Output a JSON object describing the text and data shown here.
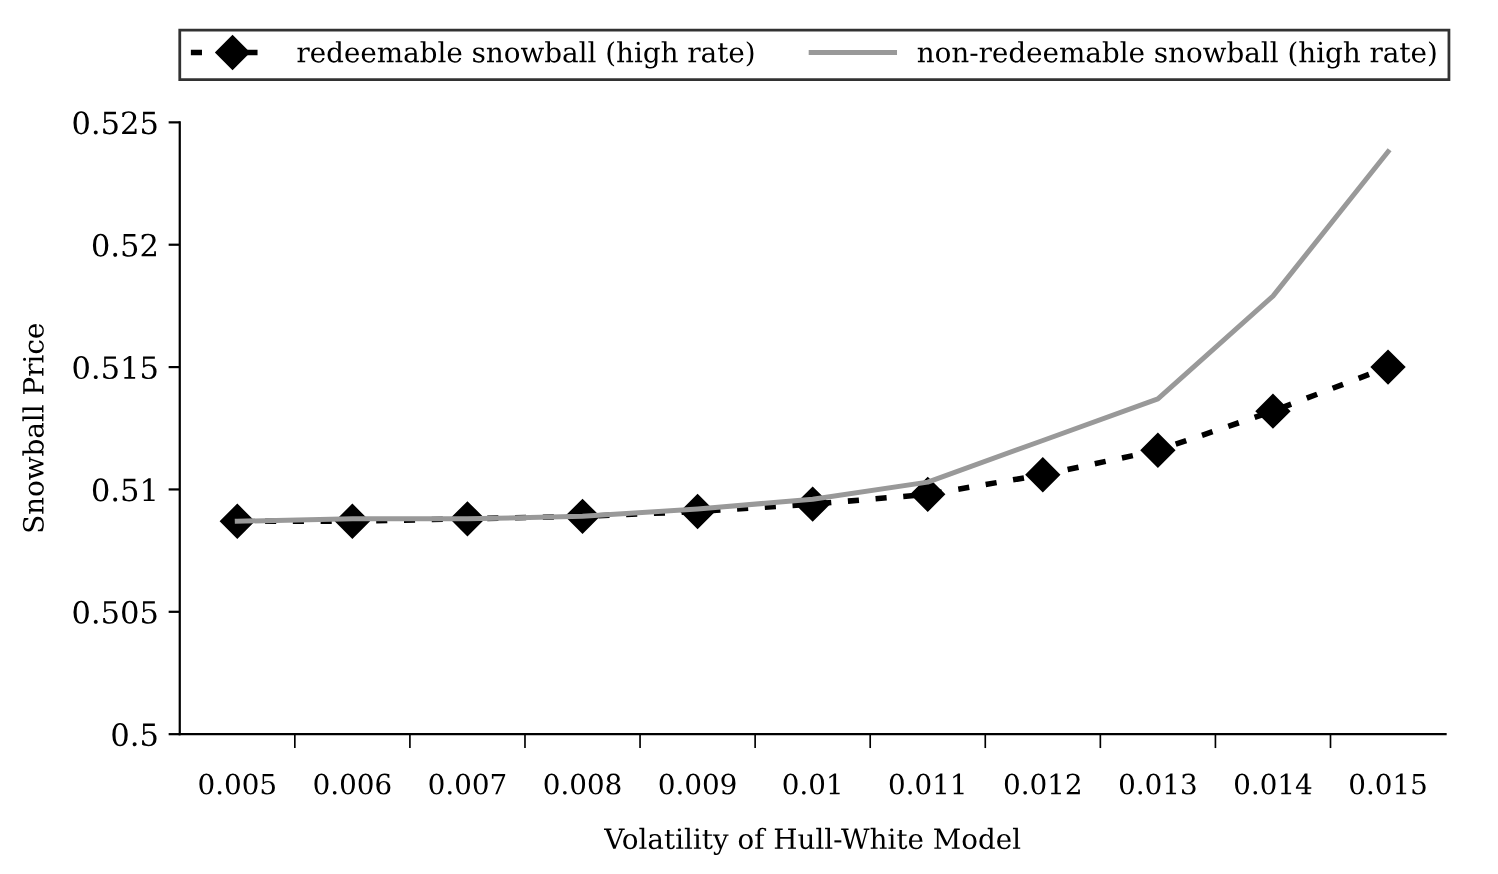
{
  "chart_data": {
    "type": "line",
    "xlabel": "Volatility of Hull-White Model",
    "ylabel": "Snowball Price",
    "categories": [
      "0.005",
      "0.006",
      "0.007",
      "0.008",
      "0.009",
      "0.01",
      "0.011",
      "0.012",
      "0.013",
      "0.014",
      "0.015"
    ],
    "series": [
      {
        "name": "redeemable snowball (high rate)",
        "color": "#000000",
        "marker": "diamond",
        "line_style": "dotted",
        "values": [
          0.5087,
          0.5087,
          0.5088,
          0.5089,
          0.5091,
          0.5094,
          0.5098,
          0.5106,
          0.5116,
          0.5132,
          0.515
        ]
      },
      {
        "name": "non-redeemable snowball (high rate)",
        "color": "#999999",
        "marker": "none",
        "line_style": "solid",
        "values": [
          0.5087,
          0.5088,
          0.5088,
          0.5089,
          0.5092,
          0.5096,
          0.5103,
          0.512,
          0.5137,
          0.5179,
          0.5238
        ]
      }
    ],
    "ylim": [
      0.5,
      0.525
    ],
    "yticks": [
      0.5,
      0.505,
      0.51,
      0.515,
      0.52,
      0.525
    ],
    "grid": false,
    "legend": "top"
  }
}
